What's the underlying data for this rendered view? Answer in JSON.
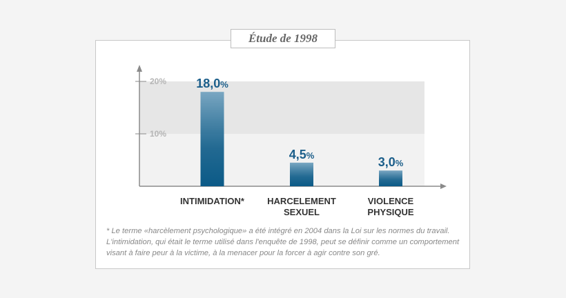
{
  "chart_data": {
    "type": "bar",
    "title": "Étude de 1998",
    "categories": [
      "INTIMIDATION*",
      "HARCELEMENT\nSEXUEL",
      "VIOLENCE\nPHYSIQUE"
    ],
    "values": [
      18.0,
      4.5,
      3.0
    ],
    "value_labels": [
      "18,0",
      "4,5",
      "3,0"
    ],
    "value_suffix": "%",
    "yticks": [
      {
        "value": 10,
        "label": "10%"
      },
      {
        "value": 20,
        "label": "20%"
      }
    ],
    "ylim": [
      0,
      20
    ],
    "xlabel": "",
    "ylabel": "",
    "colors": {
      "bar_top": "#7aa7c2",
      "bar_bottom": "#0b5a87",
      "label": "#1b5e8a",
      "band_upper": "#e6e6e6",
      "band_lower": "#f2f2f2",
      "axis": "#8a8a8a"
    }
  },
  "footnote": "* Le terme «harcèlement psychologique» a été intégré en 2004 dans la Loi sur les normes du travail. L'intimidation, qui était le terme utilisé dans l'enquête de 1998, peut se définir comme un comportement visant à faire peur à la victime, à la menacer pour la forcer à agir contre son gré."
}
